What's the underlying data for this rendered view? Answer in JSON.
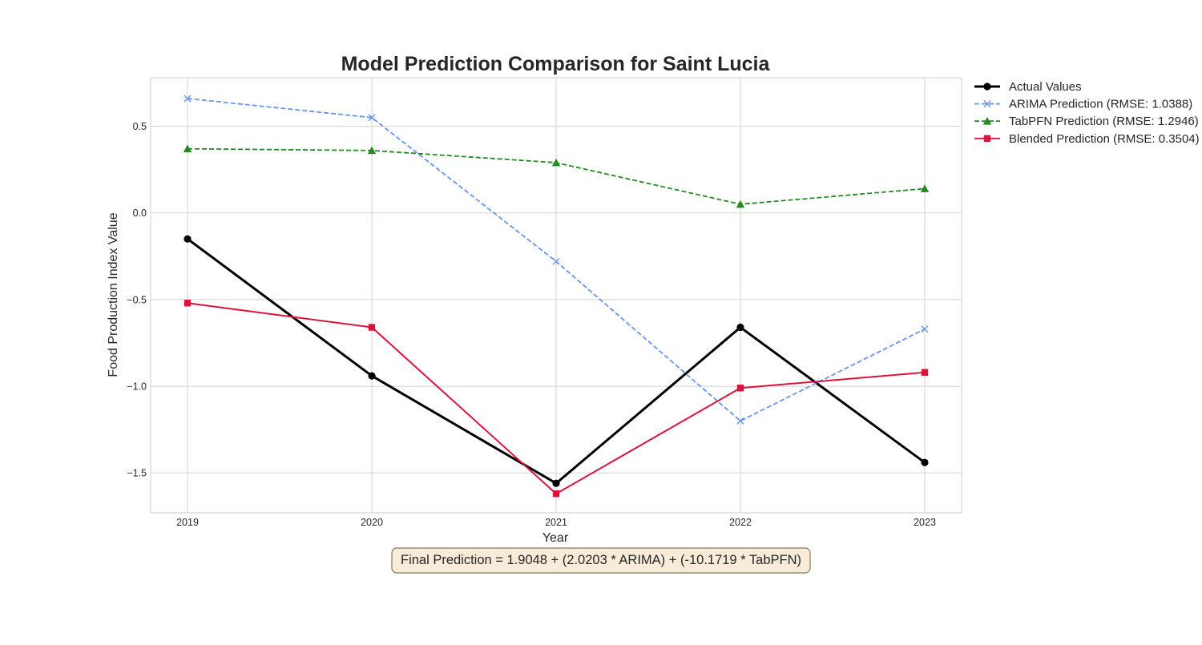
{
  "chart_data": {
    "type": "line",
    "title": "Model Prediction Comparison for Saint Lucia",
    "xlabel": "Year",
    "ylabel": "Food Production Index Value",
    "x": [
      2019,
      2020,
      2021,
      2022,
      2023
    ],
    "x_tick_labels": [
      "2019",
      "2020",
      "2021",
      "2022",
      "2023"
    ],
    "y_ticks": [
      0.5,
      0.0,
      -0.5,
      -1.0,
      -1.5
    ],
    "y_tick_labels": [
      "0.5",
      "0.0",
      "−0.5",
      "−1.0",
      "−1.5"
    ],
    "xlim": [
      2018.8,
      2023.2
    ],
    "ylim": [
      -1.73,
      0.78
    ],
    "grid": true,
    "legend_position": "outside-top-right",
    "series": [
      {
        "name": "Actual Values",
        "values": [
          -0.15,
          -0.94,
          -1.56,
          -0.66,
          -1.44
        ],
        "color": "#000000",
        "line_style": "solid",
        "marker": "circle"
      },
      {
        "name": "ARIMA Prediction (RMSE: 1.0388)",
        "values": [
          0.66,
          0.55,
          -0.28,
          -1.2,
          -0.67
        ],
        "color": "#6495ed",
        "line_style": "dashed",
        "marker": "x"
      },
      {
        "name": "TabPFN Prediction (RMSE: 1.2946)",
        "values": [
          0.37,
          0.36,
          0.29,
          0.05,
          0.14
        ],
        "color": "#228b22",
        "line_style": "dashed",
        "marker": "triangle"
      },
      {
        "name": "Blended Prediction (RMSE: 0.3504)",
        "values": [
          -0.52,
          -0.66,
          -1.62,
          -1.01,
          -0.92
        ],
        "color": "#dc143c",
        "line_style": "solid",
        "marker": "square"
      }
    ],
    "annotation": "Final Prediction = 1.9048 + (2.0203 * ARIMA) + (-10.1719 * TabPFN)"
  }
}
